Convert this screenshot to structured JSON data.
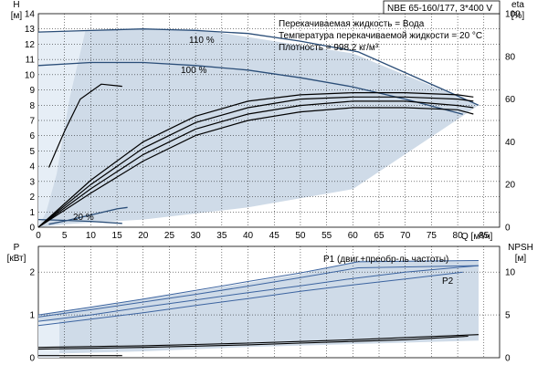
{
  "chart_data": [
    {
      "type": "line",
      "title": "NBE 65-160/177, 3*400 V",
      "info_lines": [
        "Перекачиваемая жидкость = Вода",
        "Температура перекачиваемой жидкости = 20 °C",
        "Плотность = 998.2 кг/м³"
      ],
      "ylabel_left": "H",
      "yunit_left": "[м]",
      "ylabel_right": "eta",
      "yunit_right": "[%]",
      "xlabel": "Q [м³/ч]",
      "xlim": [
        0,
        88
      ],
      "ylim_left": [
        0,
        14
      ],
      "ylim_right": [
        0,
        100
      ],
      "x_ticks": [
        0,
        5,
        10,
        15,
        20,
        25,
        30,
        35,
        40,
        45,
        50,
        55,
        60,
        65,
        70,
        75,
        80,
        85
      ],
      "y_left_ticks": [
        0,
        1,
        2,
        3,
        4,
        5,
        6,
        7,
        8,
        9,
        10,
        11,
        12,
        13,
        14
      ],
      "y_right_ticks": [
        0,
        20,
        40,
        60,
        80,
        100
      ],
      "grid": true,
      "operating_area": [
        [
          0,
          0
        ],
        [
          0,
          12.8
        ],
        [
          9,
          12.9
        ],
        [
          30,
          13.0
        ],
        [
          60,
          11.4
        ],
        [
          84,
          8.0
        ],
        [
          81,
          7.3
        ],
        [
          60,
          2.5
        ],
        [
          40,
          1.3
        ],
        [
          20,
          0.5
        ],
        [
          5,
          0.2
        ]
      ],
      "operating_area_left": [
        [
          0,
          0
        ],
        [
          0,
          12.8
        ],
        [
          9,
          12.9
        ],
        [
          6,
          8.5
        ],
        [
          3.5,
          3.5
        ],
        [
          1.5,
          1.0
        ]
      ],
      "series": [
        {
          "name": "110 %",
          "axis": "left",
          "x": [
            0,
            10,
            20,
            30,
            40,
            50,
            61,
            84
          ],
          "y": [
            12.8,
            12.9,
            13.0,
            12.9,
            12.7,
            12.2,
            11.5,
            8.0
          ]
        },
        {
          "name": "100 %",
          "axis": "left",
          "x": [
            0,
            10,
            20,
            30,
            40,
            50,
            60,
            70,
            81
          ],
          "y": [
            10.6,
            10.8,
            10.8,
            10.6,
            10.3,
            9.8,
            9.2,
            8.4,
            7.4
          ]
        },
        {
          "name": "20 %",
          "axis": "left",
          "x": [
            0,
            5,
            10,
            16
          ],
          "y": [
            0.5,
            0.45,
            0.38,
            0.25
          ]
        },
        {
          "name": "",
          "axis": "left",
          "x": [
            2,
            5,
            10,
            15,
            17
          ],
          "y": [
            0.2,
            0.4,
            0.8,
            1.2,
            1.3
          ]
        },
        {
          "name": "",
          "axis": "right",
          "x": [
            2,
            5,
            8,
            12,
            16
          ],
          "y": [
            28,
            45,
            60,
            67,
            66
          ]
        },
        {
          "name": "",
          "axis": "right",
          "x": [
            0,
            10,
            20,
            30,
            40,
            50,
            60,
            70,
            80,
            83
          ],
          "y": [
            0,
            22,
            40,
            52,
            59,
            62,
            63,
            63,
            62,
            61
          ]
        },
        {
          "name": "",
          "axis": "right",
          "x": [
            0,
            10,
            20,
            30,
            40,
            50,
            60,
            70,
            80,
            83
          ],
          "y": [
            0,
            20,
            37,
            49,
            56,
            60,
            61,
            61,
            60,
            59
          ]
        },
        {
          "name": "",
          "axis": "right",
          "x": [
            0,
            10,
            20,
            30,
            40,
            50,
            60,
            70,
            80,
            83
          ],
          "y": [
            0,
            18,
            34,
            46,
            53,
            57,
            59,
            59,
            57,
            56
          ]
        },
        {
          "name": "",
          "axis": "right",
          "x": [
            0,
            10,
            20,
            30,
            40,
            50,
            60,
            70,
            80,
            83
          ],
          "y": [
            0,
            16,
            31,
            43,
            50,
            54,
            56,
            56,
            55,
            53
          ]
        }
      ]
    },
    {
      "type": "line",
      "ylabel_left": "P",
      "yunit_left": "[кВт]",
      "ylabel_right": "NPSH",
      "yunit_right": "[м]",
      "xlim": [
        0,
        88
      ],
      "ylim_left": [
        0,
        2.6
      ],
      "ylim_right": [
        0,
        13
      ],
      "y_left_ticks": [
        0,
        1,
        2
      ],
      "y_right_ticks": [
        0,
        5,
        10
      ],
      "grid": true,
      "operating_area": [
        [
          0,
          0.1
        ],
        [
          0,
          1.0
        ],
        [
          10,
          1.18
        ],
        [
          30,
          1.55
        ],
        [
          50,
          1.95
        ],
        [
          61,
          2.27
        ],
        [
          84,
          2.27
        ],
        [
          84,
          0.4
        ],
        [
          40,
          0.25
        ],
        [
          20,
          0.15
        ],
        [
          5,
          0.1
        ]
      ],
      "operating_area_left": [
        [
          0,
          0
        ],
        [
          0,
          0.85
        ],
        [
          4,
          0.85
        ],
        [
          4,
          0
        ]
      ],
      "series": [
        {
          "name": "P1 (двиг.+преобр-ль частоты)",
          "axis": "left",
          "x": [
            0,
            10,
            20,
            30,
            40,
            50,
            61,
            84
          ],
          "y": [
            1.0,
            1.18,
            1.37,
            1.57,
            1.78,
            1.98,
            2.24,
            2.27
          ]
        },
        {
          "name": "",
          "axis": "left",
          "x": [
            0,
            10,
            20,
            30,
            40,
            50,
            61,
            84
          ],
          "y": [
            0.95,
            1.12,
            1.3,
            1.48,
            1.67,
            1.87,
            2.1,
            2.15
          ]
        },
        {
          "name": "P2",
          "axis": "left",
          "x": [
            0,
            10,
            20,
            30,
            40,
            50,
            60,
            70,
            84
          ],
          "y": [
            0.85,
            1.0,
            1.18,
            1.35,
            1.52,
            1.68,
            1.85,
            2.0,
            2.15
          ]
        },
        {
          "name": "",
          "axis": "left",
          "x": [
            0,
            10,
            20,
            30,
            40,
            50,
            60,
            70,
            81
          ],
          "y": [
            0.75,
            0.9,
            1.05,
            1.22,
            1.38,
            1.55,
            1.7,
            1.84,
            2.0
          ]
        },
        {
          "name": "",
          "axis": "right",
          "x": [
            0,
            10,
            20,
            30,
            40,
            50,
            60,
            70,
            84
          ],
          "y": [
            1.2,
            1.3,
            1.4,
            1.55,
            1.7,
            1.9,
            2.1,
            2.35,
            2.7
          ]
        },
        {
          "name": "",
          "axis": "right",
          "x": [
            0,
            10,
            20,
            30,
            40,
            50,
            60,
            70,
            82
          ],
          "y": [
            1.0,
            1.1,
            1.2,
            1.35,
            1.5,
            1.7,
            1.9,
            2.1,
            2.5
          ]
        },
        {
          "name": "",
          "axis": "right",
          "x": [
            0,
            5,
            10,
            16
          ],
          "y": [
            0.25,
            0.25,
            0.25,
            0.25
          ]
        }
      ]
    }
  ],
  "colors": {
    "grid": "#000000",
    "area": "#cfdbe8",
    "area_light": "#e6eef6",
    "head_curve": "#2b4e78",
    "eff_curve": "#000000",
    "power_curve": "#3c64a0",
    "npsh_curve": "#000000"
  }
}
